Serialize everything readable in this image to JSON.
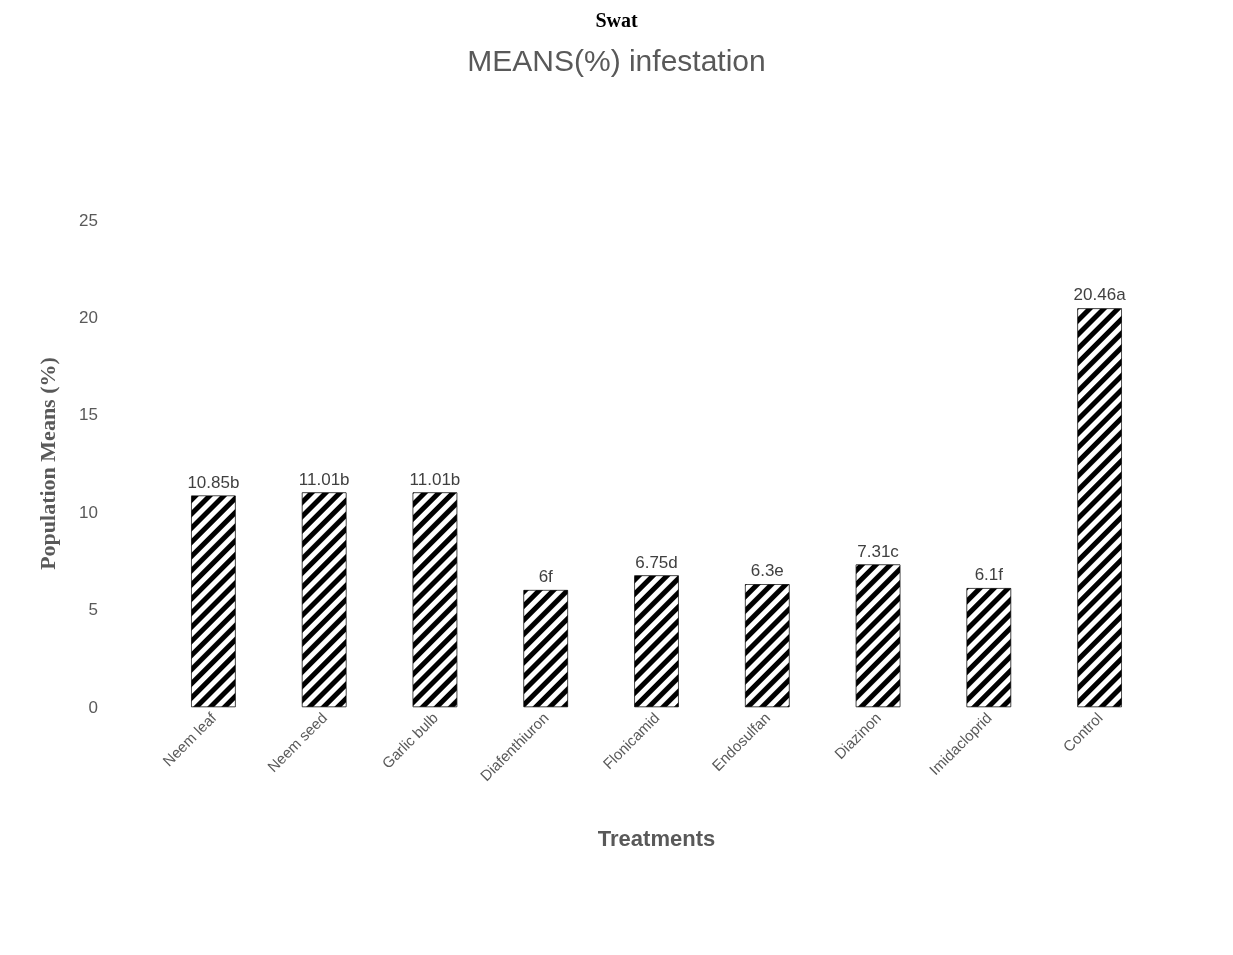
{
  "chart_data": {
    "type": "bar",
    "title": "MEANS(%) infestation",
    "xlabel": "Treatments",
    "ylabel": "Population Means (%)",
    "annotations": [
      "Swat"
    ],
    "categories": [
      "Neem leaf",
      "Neem seed",
      "Garlic bulb",
      "Diafenthiuron",
      "Flonicamid",
      "Endosulfan",
      "Diazinon",
      "Imidacloprid",
      "Control"
    ],
    "values": [
      10.85,
      11.01,
      11.01,
      6,
      6.75,
      6.3,
      7.31,
      6.1,
      20.46
    ],
    "value_labels": [
      "10.85b",
      "11.01b",
      "11.01b",
      "6f",
      "6.75d",
      "6.3e",
      "7.31c",
      "6.1f",
      "20.46a"
    ],
    "color": "#000000",
    "ylim": [
      0,
      25
    ],
    "yticks": [
      0,
      5,
      10,
      15,
      20,
      25
    ],
    "grid": false
  }
}
